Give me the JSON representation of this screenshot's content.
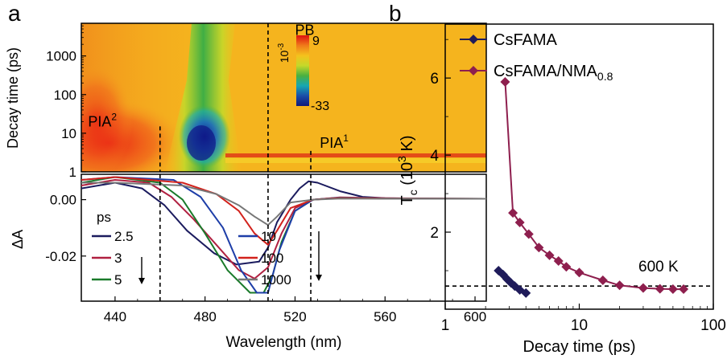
{
  "panels": {
    "a_letter": "a",
    "b_letter": "b"
  },
  "chart_data": [
    {
      "type": "heatmap",
      "panel": "a-top",
      "xlabel": "Wavelength (nm)",
      "ylabel": "Decay time (ps)",
      "xlim": [
        425,
        605
      ],
      "ylim": [
        1,
        7000
      ],
      "y_scale": "log",
      "y_ticks": [
        1,
        10,
        100,
        1000
      ],
      "y_tick_labels": [
        "1",
        "10",
        "100",
        "1000"
      ],
      "colorbar": {
        "label": "10",
        "label_exponent": "-3",
        "max_label": "9",
        "min_label": "-33",
        "range": [
          -33,
          9
        ],
        "colors": [
          "#dd1010",
          "#f07a1a",
          "#f4c21c",
          "#c4d82a",
          "#4ab040",
          "#17a7b2",
          "#1a4da8",
          "#101a7a"
        ]
      },
      "annotations": [
        {
          "text": "PB",
          "x": 520,
          "y": 3500
        },
        {
          "text": "PIA",
          "sup": "2",
          "x": 428,
          "y": 15
        },
        {
          "text": "PIA",
          "sup": "1",
          "x": 531,
          "y": 4.2
        }
      ],
      "dashed_lines": [
        {
          "x": 508,
          "y_from": 1,
          "y_to": 7000
        },
        {
          "x": 460,
          "y_from": 1,
          "y_to": 15
        },
        {
          "x": 527,
          "y_from": 1,
          "y_to": 3.5
        }
      ]
    },
    {
      "type": "line",
      "panel": "a-bottom",
      "xlabel": "Wavelength (nm)",
      "ylabel": "ΔA",
      "xlim": [
        425,
        605
      ],
      "ylim": [
        -0.036,
        0.009
      ],
      "x_ticks": [
        440,
        480,
        520,
        560,
        600
      ],
      "x_tick_labels": [
        "440",
        "480",
        "520",
        "560",
        "600"
      ],
      "y_ticks": [
        0,
        -0.02
      ],
      "y_tick_labels": [
        "0.00",
        "-0.02"
      ],
      "legend_title": "ps",
      "legend_placement": "bottom",
      "series": [
        {
          "name": "2.5",
          "color": "#1b1b5e",
          "x": [
            425,
            440,
            452,
            462,
            472,
            484,
            494,
            504,
            508,
            512,
            518,
            522,
            526,
            530,
            540,
            550,
            560,
            580,
            605
          ],
          "y": [
            0.004,
            0.006,
            0.004,
            -0.002,
            -0.011,
            -0.019,
            -0.023,
            -0.022,
            -0.017,
            -0.008,
            0.0,
            0.004,
            0.0065,
            0.006,
            0.003,
            0.001,
            0.0005,
            0.0003,
            0.0003
          ]
        },
        {
          "name": "3",
          "color": "#b02040",
          "x": [
            425,
            440,
            455,
            465,
            475,
            485,
            495,
            502,
            508,
            514,
            520,
            528,
            540,
            560,
            605
          ],
          "y": [
            0.005,
            0.007,
            0.006,
            0.001,
            -0.007,
            -0.016,
            -0.025,
            -0.028,
            -0.024,
            -0.012,
            -0.003,
            0.0,
            0.0008,
            0.0005,
            0.0003
          ]
        },
        {
          "name": "5",
          "color": "#1a7a2a",
          "x": [
            425,
            440,
            460,
            470,
            480,
            490,
            500,
            506,
            510,
            514,
            520,
            528,
            540,
            560,
            605
          ],
          "y": [
            0.006,
            0.008,
            0.006,
            0.0,
            -0.012,
            -0.025,
            -0.033,
            -0.033,
            -0.027,
            -0.015,
            -0.004,
            0.0,
            0.0007,
            0.0004,
            0.0003
          ]
        },
        {
          "name": "10",
          "color": "#1e3ea8",
          "x": [
            425,
            440,
            466,
            478,
            488,
            496,
            503,
            508,
            513,
            520,
            528,
            540,
            560,
            605
          ],
          "y": [
            0.007,
            0.008,
            0.007,
            0.001,
            -0.01,
            -0.025,
            -0.033,
            -0.033,
            -0.018,
            -0.004,
            0.0,
            0.0007,
            0.0004,
            0.0003
          ]
        },
        {
          "name": "100",
          "color": "#d2221c",
          "x": [
            425,
            440,
            470,
            485,
            495,
            502,
            508,
            512,
            518,
            528,
            540,
            560,
            605
          ],
          "y": [
            0.007,
            0.008,
            0.006,
            0.002,
            -0.004,
            -0.012,
            -0.016,
            -0.011,
            -0.003,
            0.0,
            0.0006,
            0.0004,
            0.0003
          ]
        },
        {
          "name": "1000",
          "color": "#777777",
          "x": [
            425,
            440,
            470,
            485,
            495,
            502,
            508,
            512,
            518,
            528,
            540,
            560,
            605
          ],
          "y": [
            0.006,
            0.006,
            0.005,
            0.002,
            -0.002,
            -0.006,
            -0.009,
            -0.006,
            -0.001,
            0.0,
            0.0004,
            0.0003,
            0.0003
          ]
        }
      ],
      "dashed_lines": [
        {
          "x": 460,
          "y_from": -0.036,
          "y_to": 0.009
        },
        {
          "x": 508,
          "y_from": -0.036,
          "y_to": 0.009
        },
        {
          "x": 527,
          "y_from": -0.036,
          "y_to": 0.009
        }
      ]
    },
    {
      "type": "scatter",
      "panel": "b",
      "xlabel": "Decay time (ps)",
      "ylabel": "T",
      "ylabel_sub": "c",
      "ylabel_rest": " (10",
      "ylabel_sup": "3",
      "ylabel_end": " K)",
      "x_scale": "log",
      "xlim": [
        1,
        100
      ],
      "ylim": [
        0,
        7.4
      ],
      "x_ticks": [
        1,
        10,
        100
      ],
      "x_tick_labels": [
        "1",
        "10",
        "100"
      ],
      "y_ticks": [
        2,
        4,
        6
      ],
      "y_tick_labels": [
        "2",
        "4",
        "6"
      ],
      "legend_placement": "top-left",
      "series": [
        {
          "name": "CsFAMA",
          "color": "#1f1b5a",
          "x": [
            2.5,
            2.7,
            2.9,
            3.1,
            3.3,
            3.6,
            4.0
          ],
          "y": [
            1.0,
            0.9,
            0.78,
            0.68,
            0.6,
            0.5,
            0.42
          ]
        },
        {
          "name": "CsFAMA/NMA",
          "name_sub": "0.8",
          "color": "#8e1f4e",
          "x": [
            2.8,
            3.2,
            3.6,
            4.2,
            5.0,
            6.0,
            7.0,
            8.0,
            10.0,
            15.0,
            20.0,
            30.0,
            40.0,
            50.0,
            60.0
          ],
          "y": [
            5.9,
            2.5,
            2.25,
            1.95,
            1.6,
            1.4,
            1.25,
            1.1,
            0.95,
            0.75,
            0.62,
            0.55,
            0.53,
            0.52,
            0.52
          ]
        }
      ],
      "reference_line": {
        "y": 0.6,
        "label": "600 K",
        "style": "dashed"
      }
    }
  ]
}
